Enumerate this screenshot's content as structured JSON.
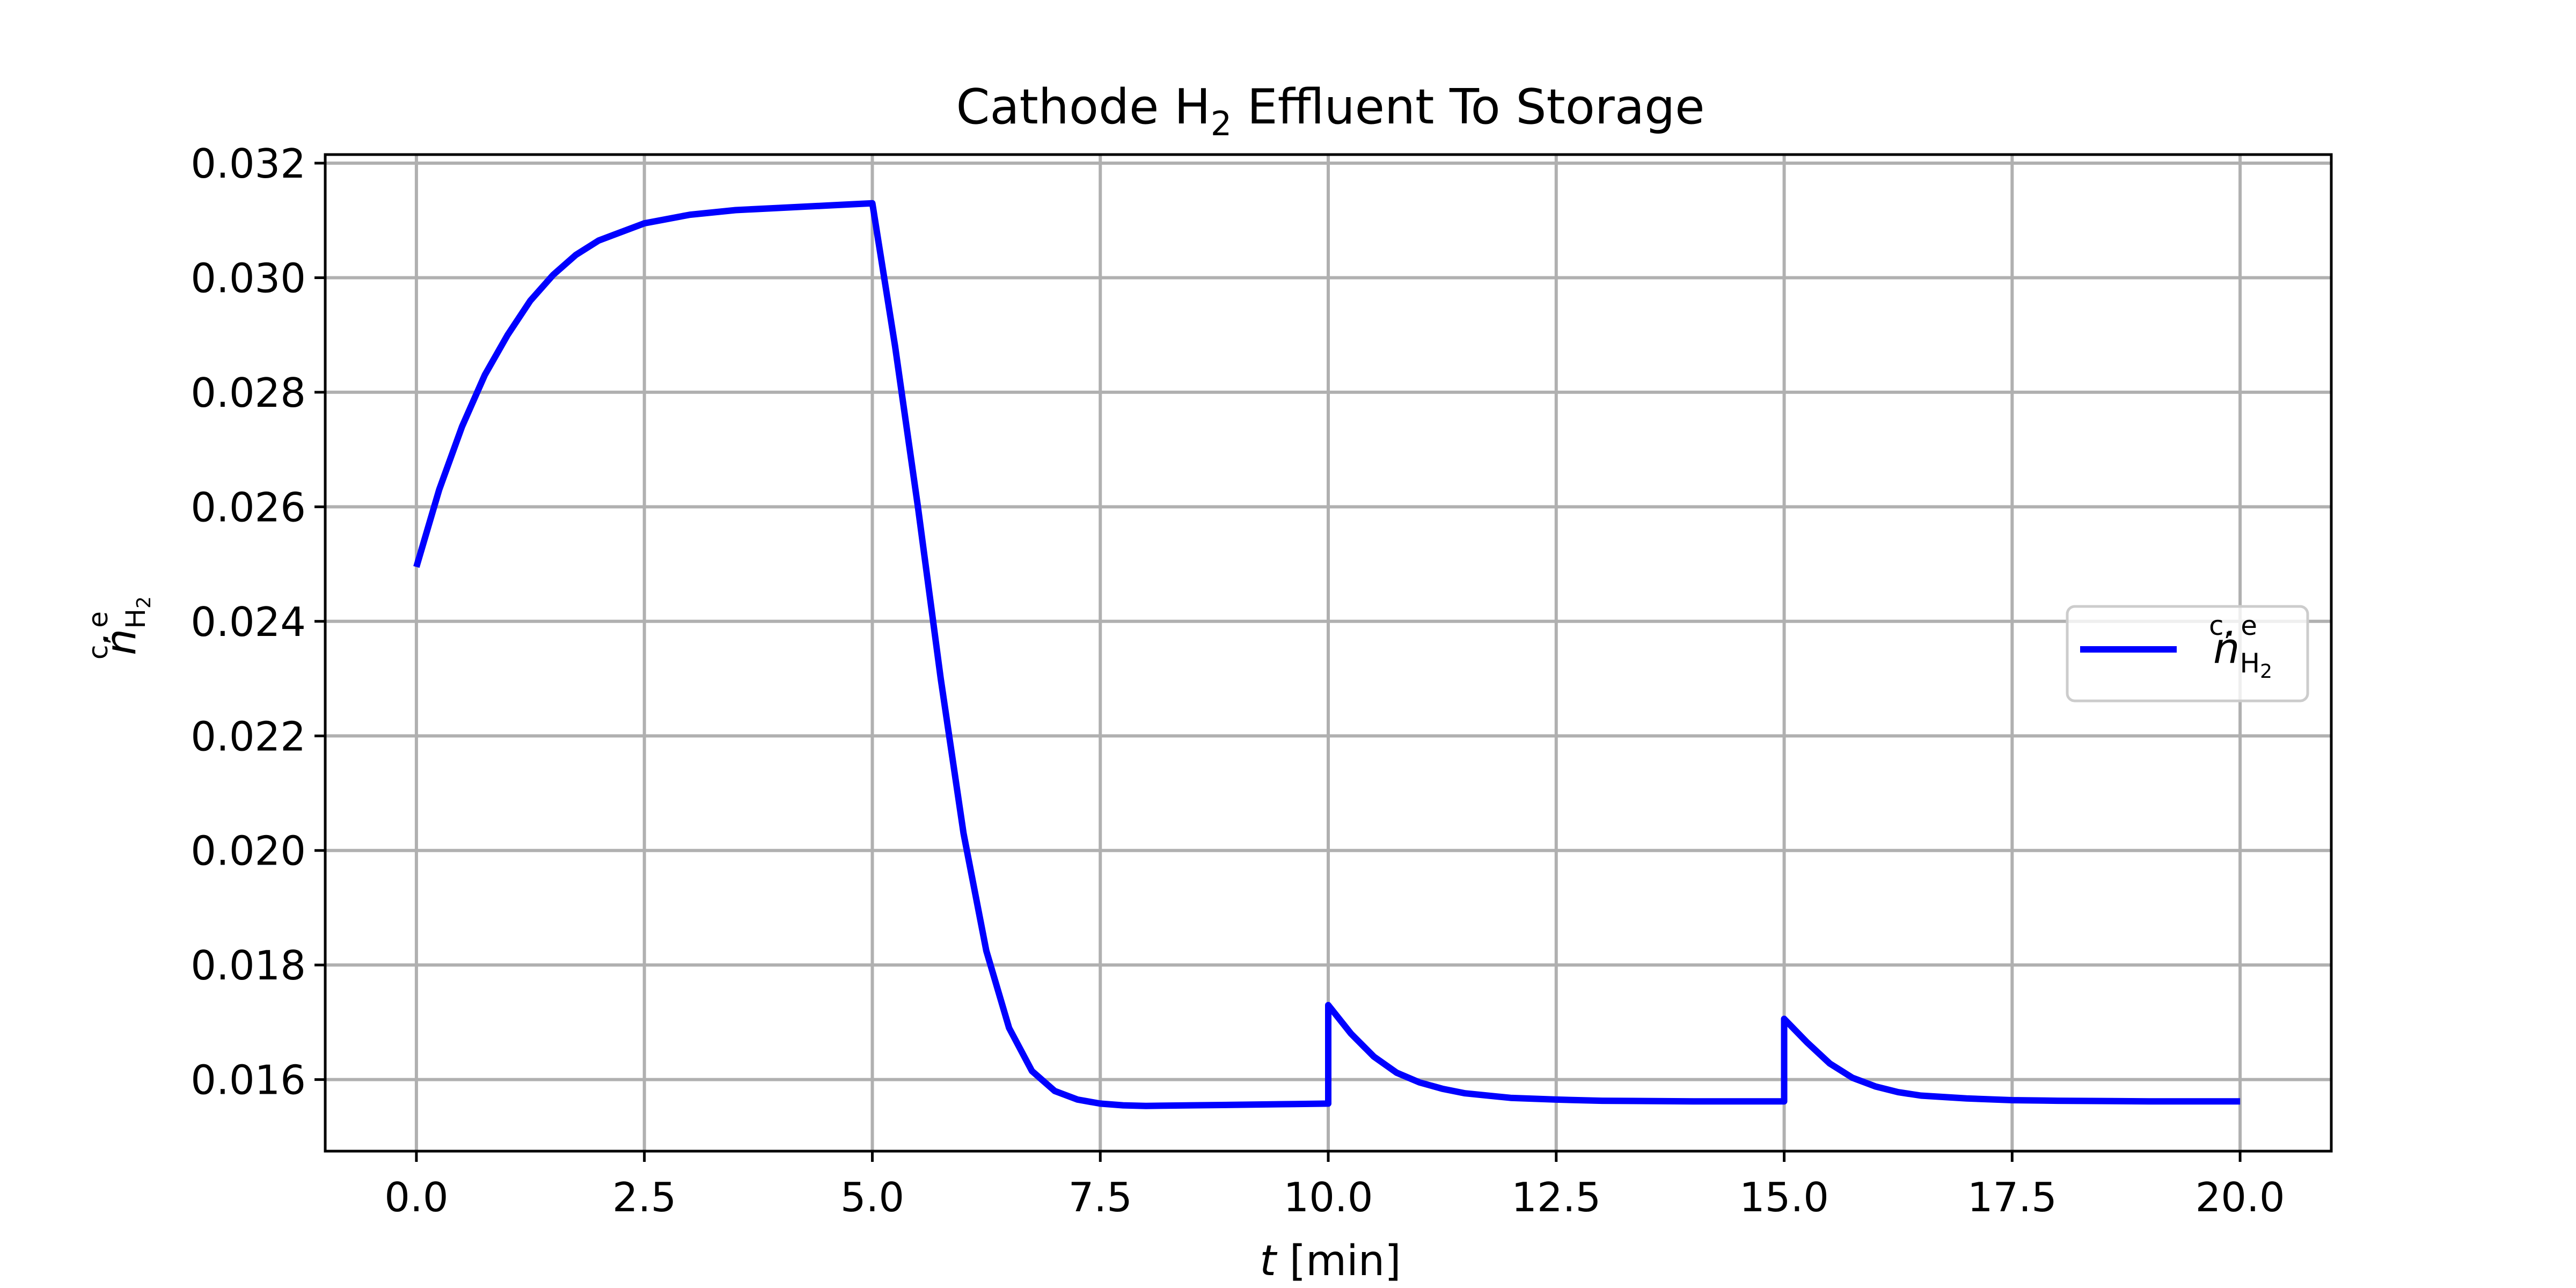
{
  "chart_data": {
    "type": "line",
    "title": {
      "prefix": "Cathode H",
      "subscript": "2",
      "suffix": " Effluent To Storage"
    },
    "xlabel": {
      "var": "t",
      "unit": " [min]"
    },
    "ylabel": {
      "base": "ṅ",
      "sup": "c, e",
      "sub": "H",
      "sub2": "2"
    },
    "xlim": [
      -1.0,
      21.0
    ],
    "ylim": [
      0.01475,
      0.03215
    ],
    "xticks": [
      0.0,
      2.5,
      5.0,
      7.5,
      10.0,
      12.5,
      15.0,
      17.5,
      20.0
    ],
    "xtick_labels": [
      "0.0",
      "2.5",
      "5.0",
      "7.5",
      "10.0",
      "12.5",
      "15.0",
      "17.5",
      "20.0"
    ],
    "yticks": [
      0.016,
      0.018,
      0.02,
      0.022,
      0.024,
      0.026,
      0.028,
      0.03,
      0.032
    ],
    "ytick_labels": [
      "0.016",
      "0.018",
      "0.020",
      "0.022",
      "0.024",
      "0.026",
      "0.028",
      "0.030",
      "0.032"
    ],
    "grid": true,
    "legend_position": "center-right",
    "series": [
      {
        "name": {
          "base": "ṅ",
          "sup": "c, e",
          "sub": "H",
          "sub2": "2"
        },
        "color": "#0000ff",
        "x": [
          0.0,
          0.25,
          0.5,
          0.75,
          1.0,
          1.25,
          1.5,
          1.75,
          2.0,
          2.5,
          3.0,
          3.5,
          4.0,
          4.5,
          5.0,
          5.25,
          5.5,
          5.75,
          6.0,
          6.25,
          6.5,
          6.75,
          7.0,
          7.25,
          7.5,
          7.75,
          8.0,
          8.5,
          9.0,
          9.5,
          10.0,
          10.0,
          10.25,
          10.5,
          10.75,
          11.0,
          11.25,
          11.5,
          12.0,
          12.5,
          13.0,
          14.0,
          15.0,
          15.0,
          15.25,
          15.5,
          15.75,
          16.0,
          16.25,
          16.5,
          17.0,
          17.5,
          18.0,
          19.0,
          20.0
        ],
        "y": [
          0.02495,
          0.0263,
          0.0274,
          0.0283,
          0.029,
          0.0296,
          0.03005,
          0.0304,
          0.03065,
          0.03095,
          0.0311,
          0.03118,
          0.03122,
          0.03126,
          0.0313,
          0.0288,
          0.026,
          0.023,
          0.0203,
          0.01825,
          0.0169,
          0.01615,
          0.0158,
          0.01565,
          0.01558,
          0.01555,
          0.01554,
          0.01555,
          0.01556,
          0.01557,
          0.01558,
          0.0173,
          0.0168,
          0.0164,
          0.01612,
          0.01595,
          0.01584,
          0.01576,
          0.01568,
          0.01565,
          0.01563,
          0.01562,
          0.01562,
          0.01706,
          0.01665,
          0.01628,
          0.01603,
          0.01588,
          0.01578,
          0.01572,
          0.01567,
          0.01564,
          0.01563,
          0.01562,
          0.01562
        ]
      }
    ]
  }
}
